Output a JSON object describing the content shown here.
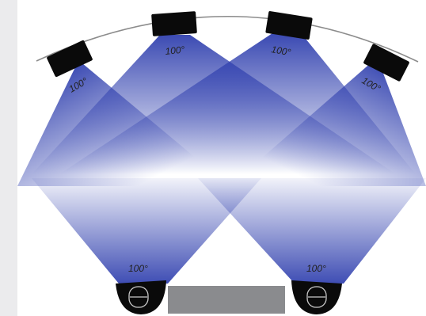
{
  "colors": {
    "side_panel": "#ebebed",
    "beam": "#2f3fae",
    "speaker_body": "#0a0a0a",
    "arc_line": "#8c8c8c",
    "floor_bar": "#8a8b8e",
    "label_text": "#222222"
  },
  "speakers": {
    "top": [
      {
        "id": "top-speaker-1",
        "angle_label": "100°",
        "beam_angle_deg": 100
      },
      {
        "id": "top-speaker-2",
        "angle_label": "100°",
        "beam_angle_deg": 100
      },
      {
        "id": "top-speaker-3",
        "angle_label": "100°",
        "beam_angle_deg": 100
      },
      {
        "id": "top-speaker-4",
        "angle_label": "100°",
        "beam_angle_deg": 100
      }
    ],
    "bottom": [
      {
        "id": "bottom-speaker-left",
        "angle_label": "100°",
        "beam_angle_deg": 100
      },
      {
        "id": "bottom-speaker-right",
        "angle_label": "100°",
        "beam_angle_deg": 100
      }
    ]
  }
}
